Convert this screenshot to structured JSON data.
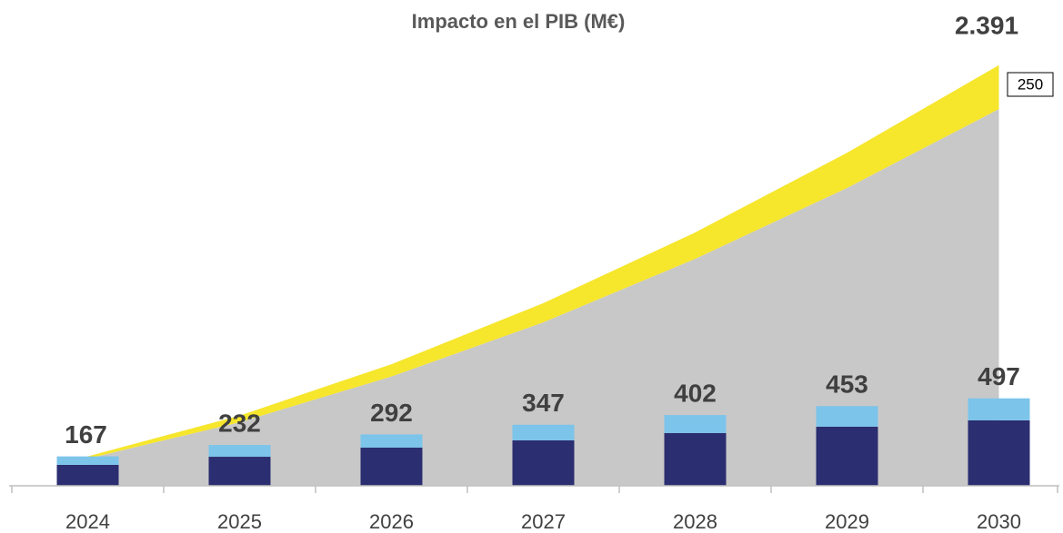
{
  "chart_data": {
    "type": "combo",
    "title": "Impacto en el PIB (M€)",
    "categories": [
      "2024",
      "2025",
      "2026",
      "2027",
      "2028",
      "2029",
      "2030"
    ],
    "ylim": [
      0,
      2400
    ],
    "series": [
      {
        "type": "area",
        "color": "#c8c8c8",
        "values": [
          155,
          361,
          621,
          929,
          1290,
          1693,
          2141
        ]
      },
      {
        "type": "area",
        "color": "#f6e62c",
        "values": [
          12,
          38,
          70,
          109,
          150,
          200,
          250
        ]
      },
      {
        "type": "bar",
        "color": "#2b2e70",
        "values": [
          119,
          165,
          217,
          258,
          300,
          336,
          372
        ]
      },
      {
        "type": "bar",
        "color": "#7cc4ea",
        "values": [
          48,
          67,
          75,
          89,
          102,
          117,
          125
        ]
      }
    ],
    "totals": [
      167,
      232,
      292,
      347,
      402,
      453,
      497
    ],
    "area_total_label": {
      "value": 2391,
      "label": "2.391"
    }
  }
}
